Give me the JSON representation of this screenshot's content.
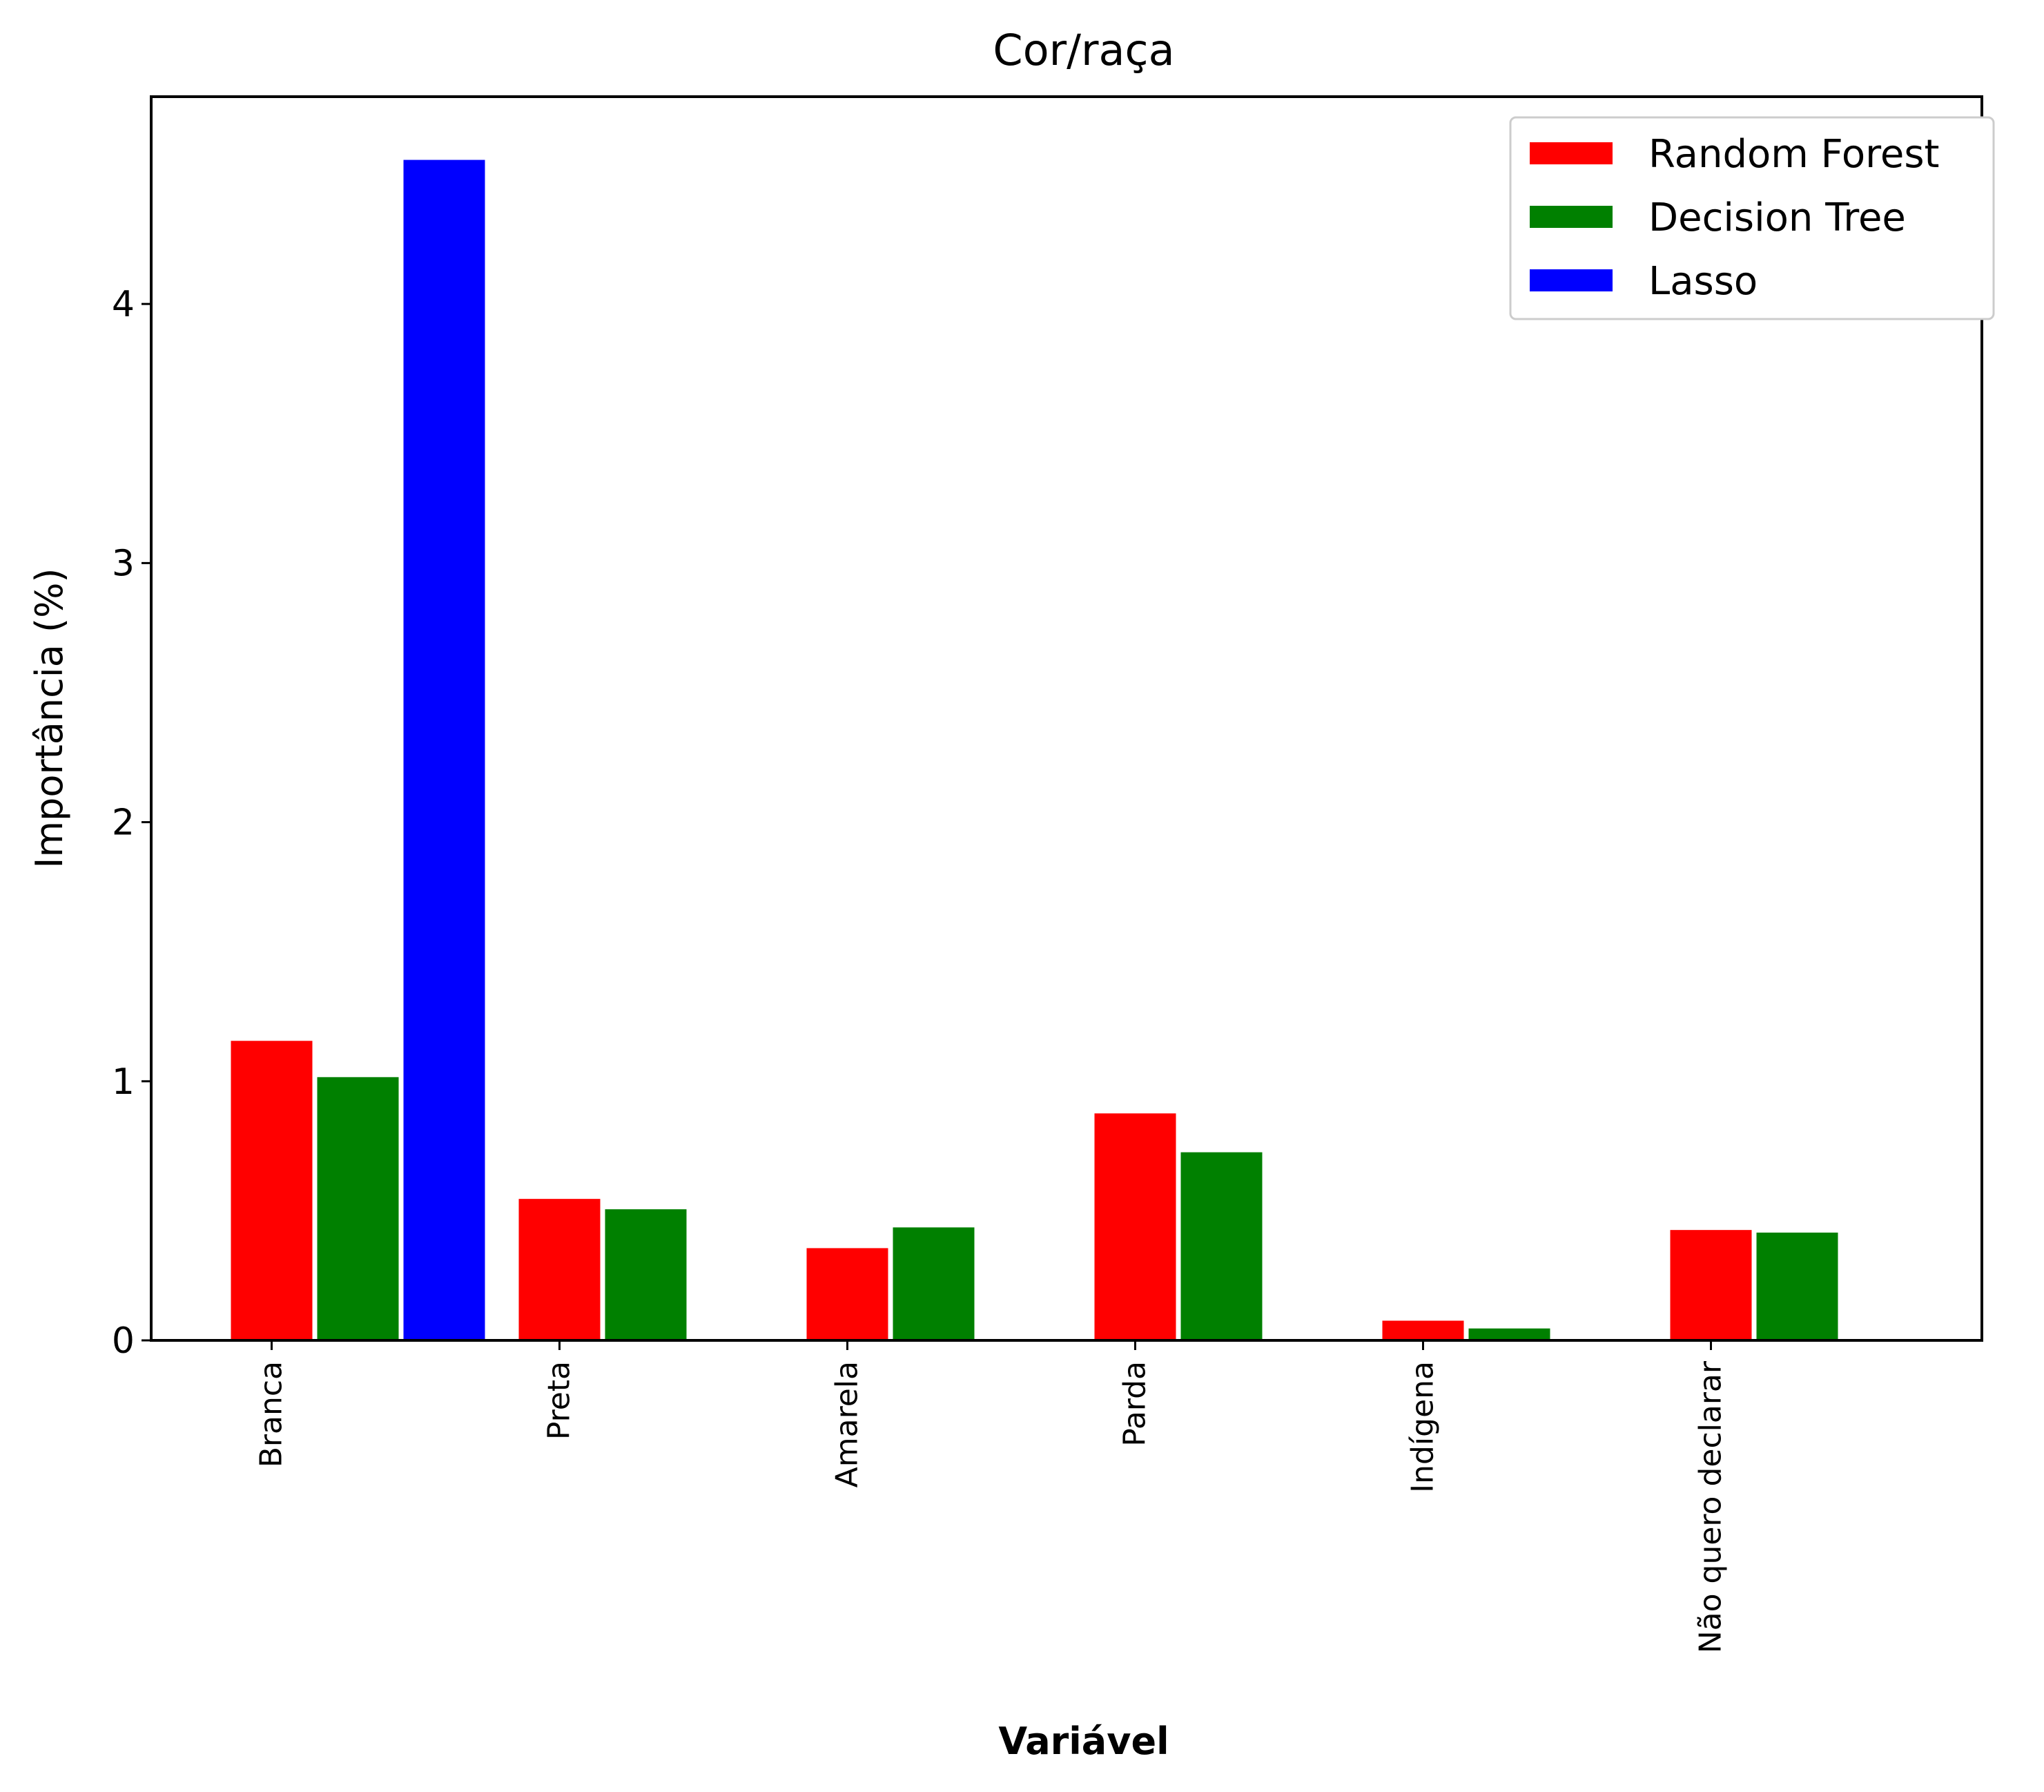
{
  "chart_data": {
    "type": "bar",
    "title": "Cor/raça",
    "xlabel": "Variável",
    "ylabel": "Importância (%)",
    "categories": [
      "Branca",
      "Preta",
      "Amarela",
      "Parda",
      "Indígena",
      "Não quero declarar"
    ],
    "series": [
      {
        "name": "Random Forest",
        "color": "#ff0000",
        "values": [
          1.16,
          0.55,
          0.36,
          0.88,
          0.08,
          0.43
        ]
      },
      {
        "name": "Decision Tree",
        "color": "#008000",
        "values": [
          1.02,
          0.51,
          0.44,
          0.73,
          0.05,
          0.42
        ]
      },
      {
        "name": "Lasso",
        "color": "#0000ff",
        "values": [
          4.56,
          null,
          null,
          null,
          null,
          null
        ]
      }
    ],
    "yticks": [
      0,
      1,
      2,
      3,
      4
    ],
    "ylim": [
      0,
      4.8
    ],
    "grid": false,
    "legend": "top-right"
  }
}
